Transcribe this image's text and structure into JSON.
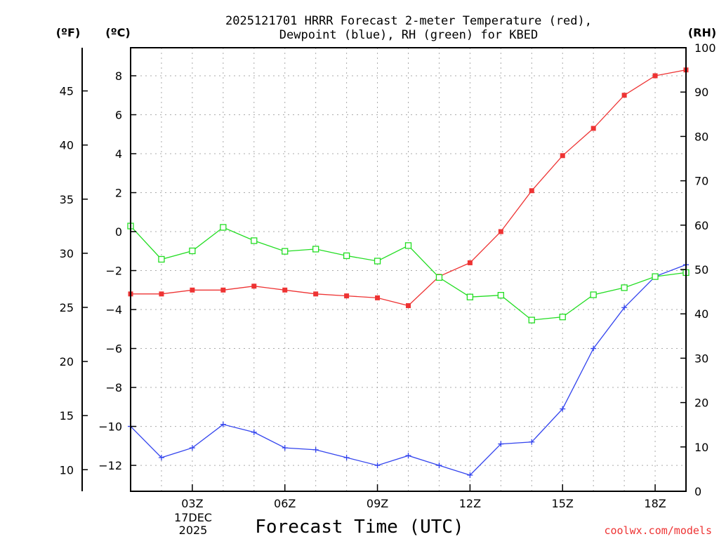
{
  "chart_data": {
    "type": "line",
    "title_line1": "2025121701 HRRR Forecast 2-meter Temperature (red),",
    "title_line2": "Dewpoint (blue), RH (green) for KBED",
    "xlabel": "Forecast Time (UTC)",
    "date_label": [
      "17DEC",
      "2025"
    ],
    "credit": "coolwx.com/models",
    "unit_f": "(ºF)",
    "unit_c": "(ºC)",
    "unit_rh": "(RH)",
    "x_hours": [
      1,
      2,
      3,
      4,
      5,
      6,
      7,
      8,
      9,
      10,
      11,
      12,
      13,
      14,
      15,
      16,
      17,
      18,
      19
    ],
    "xlim": [
      1,
      19
    ],
    "x_ticks": [
      3,
      6,
      9,
      12,
      15,
      18
    ],
    "x_tick_labels": [
      "03Z",
      "06Z",
      "09Z",
      "12Z",
      "15Z",
      "18Z"
    ],
    "ylim_c": [
      -13.33,
      9.44
    ],
    "y_ticks_c": [
      -12,
      -10,
      -8,
      -6,
      -4,
      -2,
      0,
      2,
      4,
      6,
      8
    ],
    "y_tick_labels_c": [
      "−12",
      "−10",
      "−8",
      "−6",
      "−4",
      "−2",
      "0",
      "2",
      "4",
      "6",
      "8"
    ],
    "y_ticks_f": [
      10,
      15,
      20,
      25,
      30,
      35,
      40,
      45
    ],
    "y_tick_labels_f": [
      "10",
      "15",
      "20",
      "25",
      "30",
      "35",
      "40",
      "45"
    ],
    "ylim_rh": [
      0,
      100
    ],
    "y_ticks_rh": [
      0,
      10,
      20,
      30,
      40,
      50,
      60,
      70,
      80,
      90,
      100
    ],
    "y_tick_labels_rh": [
      "0",
      "10",
      "20",
      "30",
      "40",
      "50",
      "60",
      "70",
      "80",
      "90",
      "100"
    ],
    "series": [
      {
        "name": "Temperature",
        "axis": "c",
        "color": "#ee3333",
        "marker": "filled-square",
        "values": [
          -3.2,
          -3.2,
          -3.0,
          -3.0,
          -2.8,
          -3.0,
          -3.2,
          -3.3,
          -3.4,
          -3.8,
          -2.3,
          -1.6,
          0.0,
          2.1,
          3.9,
          5.3,
          7.0,
          8.0,
          8.3
        ]
      },
      {
        "name": "Dewpoint",
        "axis": "c",
        "color": "#3344ee",
        "marker": "plus",
        "values": [
          -10.0,
          -11.6,
          -11.1,
          -9.9,
          -10.3,
          -11.1,
          -11.2,
          -11.6,
          -12.0,
          -11.5,
          -12.0,
          -12.5,
          -10.9,
          -10.8,
          -9.1,
          -6.0,
          -3.9,
          -2.3,
          -1.7
        ]
      },
      {
        "name": "RH",
        "axis": "rh",
        "color": "#22dd22",
        "marker": "open-square",
        "values": [
          59.8,
          52.3,
          54.2,
          59.5,
          56.5,
          54.1,
          54.6,
          53.1,
          51.9,
          55.4,
          48.2,
          43.8,
          44.2,
          38.6,
          39.3,
          44.3,
          45.9,
          48.4,
          49.3
        ]
      }
    ]
  }
}
